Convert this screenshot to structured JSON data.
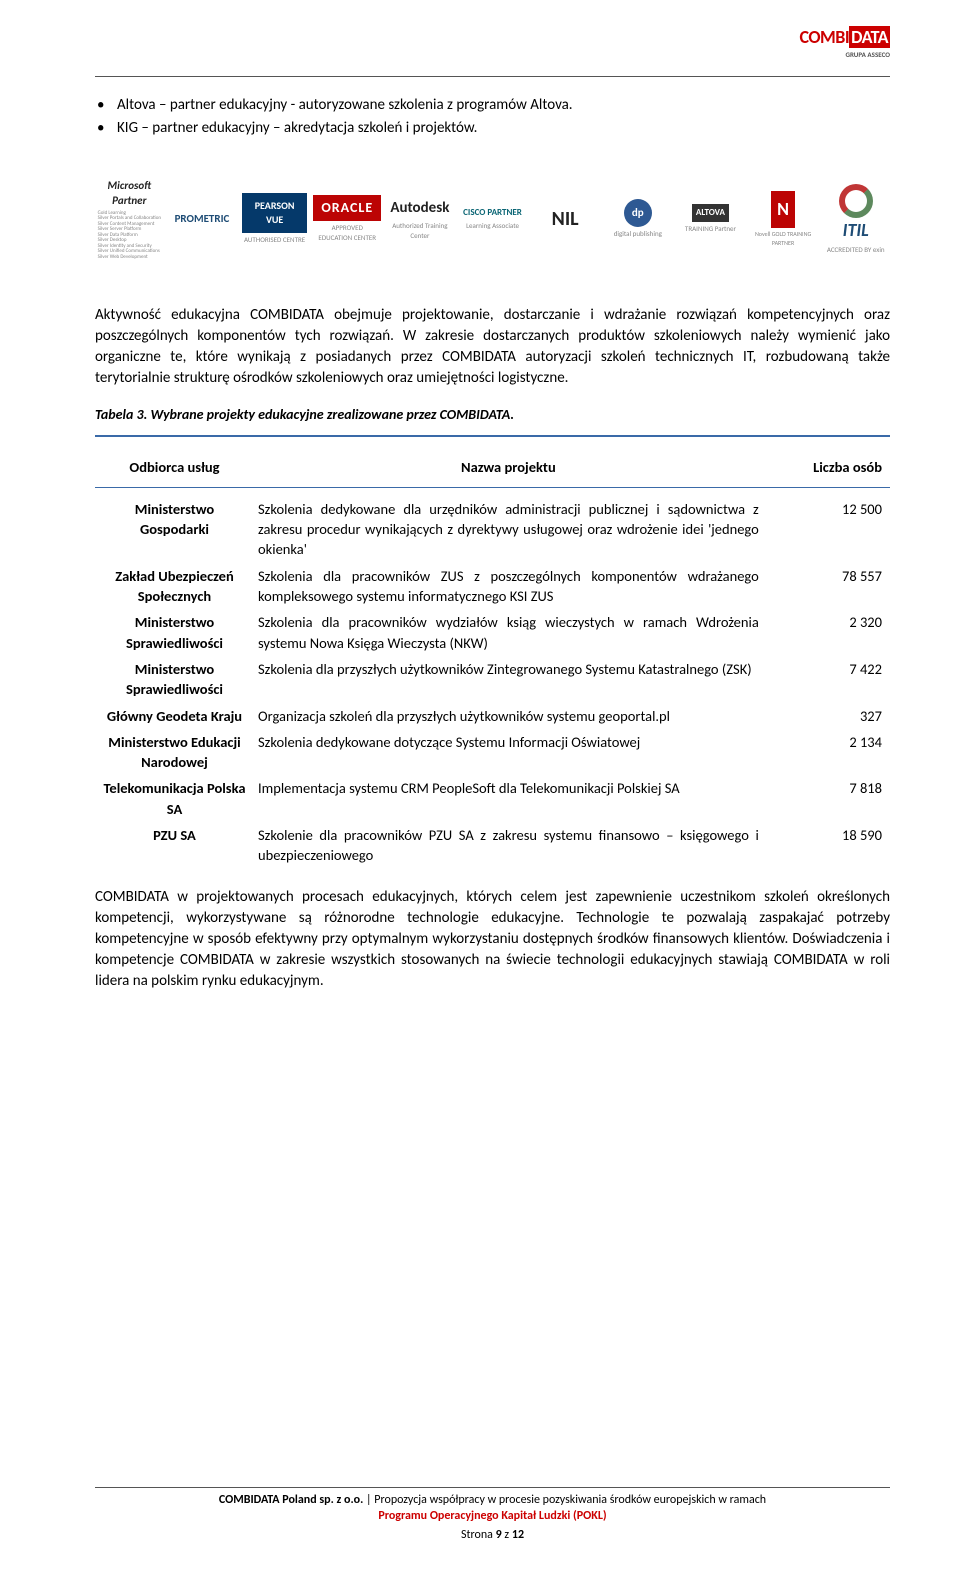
{
  "header": {
    "logo_part1": "COMBI",
    "logo_part2": "DATA",
    "logo_sub": "GRUPA ASSECO"
  },
  "bullets": [
    "Altova – partner edukacyjny - autoryzowane szkolenia z programów Altova.",
    "KIG – partner edukacyjny – akredytacja szkoleń i projektów."
  ],
  "logos": [
    {
      "name": "Microsoft Partner",
      "sub": "Gold Learning\nSilver Portals and Collaboration\nSilver Content Management\nSilver Server Platform\nSilver Data Platform\nSilver Desktop\nSilver Identity and Security\nSilver Unified Communications\nSilver Web Development"
    },
    {
      "name": "PROMETRIC",
      "sub": ""
    },
    {
      "name": "PEARSON VUE",
      "sub": "AUTHORISED CENTRE"
    },
    {
      "name": "ORACLE",
      "sub": "APPROVED EDUCATION CENTER"
    },
    {
      "name": "Autodesk",
      "sub": "Authorized Training Center"
    },
    {
      "name": "CISCO PARTNER",
      "sub": "Learning Associate"
    },
    {
      "name": "NIL",
      "sub": ""
    },
    {
      "name": "dp",
      "sub": "digital publishing"
    },
    {
      "name": "ALTOVA",
      "sub": "TRAINING Partner"
    },
    {
      "name": "N",
      "sub": "Novell GOLD TRAINING PARTNER"
    },
    {
      "name": "ITIL",
      "sub": "ACCREDITED BY exin"
    }
  ],
  "para1": "Aktywność edukacyjna COMBIDATA obejmuje projektowanie, dostarczanie i wdrażanie rozwiązań kompetencyjnych oraz poszczególnych komponentów tych rozwiązań. W zakresie dostarczanych produktów szkoleniowych należy wymienić jako organiczne te, które wynikają z posiadanych przez COMBIDATA autoryzacji szkoleń technicznych IT, rozbudowaną także terytorialnie strukturę ośrodków szkoleniowych oraz umiejętności logistyczne.",
  "table_caption": "Tabela 3. Wybrane projekty edukacyjne zrealizowane przez COMBIDATA.",
  "table": {
    "headers": [
      "Odbiorca usług",
      "Nazwa projektu",
      "Liczba osób"
    ],
    "rows": [
      {
        "c1": "Ministerstwo Gospodarki",
        "c2": "Szkolenia dedykowane dla urzędników administracji publicznej i sądownictwa  z zakresu procedur wynikających z dyrektywy usługowej oraz wdrożenie idei 'jednego okienka'",
        "c3": "12 500"
      },
      {
        "c1": "Zakład Ubezpieczeń Społecznych",
        "c2": "Szkolenia dla pracowników ZUS z poszczególnych komponentów wdrażanego kompleksowego systemu informatycznego KSI ZUS",
        "c3": "78 557"
      },
      {
        "c1": "Ministerstwo Sprawiedliwości",
        "c2": "Szkolenia dla pracowników wydziałów ksiąg wieczystych w ramach Wdrożenia systemu Nowa Księga Wieczysta (NKW)",
        "c3": "2 320"
      },
      {
        "c1": "Ministerstwo Sprawiedliwości",
        "c2": "Szkolenia dla przyszłych użytkowników Zintegrowanego Systemu Katastralnego (ZSK)",
        "c3": "7 422"
      },
      {
        "c1": "Główny Geodeta Kraju",
        "c2": "Organizacja szkoleń dla przyszłych użytkowników systemu geoportal.pl",
        "c3": "327"
      },
      {
        "c1": "Ministerstwo Edukacji Narodowej",
        "c2": "Szkolenia dedykowane dotyczące Systemu Informacji Oświatowej",
        "c3": "2 134"
      },
      {
        "c1": "Telekomunikacja Polska SA",
        "c2": "Implementacja systemu CRM PeopleSoft dla Telekomunikacji Polskiej SA",
        "c3": "7 818"
      },
      {
        "c1": "PZU SA",
        "c2": "Szkolenie dla pracowników PZU SA z zakresu systemu finansowo – księgowego i ubezpieczeniowego",
        "c3": "18 590"
      }
    ]
  },
  "para2": "COMBIDATA w projektowanych procesach edukacyjnych, których celem jest zapewnienie uczestnikom szkoleń określonych kompetencji, wykorzystywane są różnorodne technologie edukacyjne. Technologie te pozwalają zaspakajać potrzeby kompetencyjne w sposób efektywny przy optymalnym wykorzystaniu dostępnych środków finansowych klientów. Doświadczenia i kompetencje COMBIDATA w zakresie wszystkich stosowanych na świecie technologii edukacyjnych stawiają COMBIDATA w roli lidera na polskim rynku edukacyjnym.",
  "footer": {
    "line1_a": "COMBIDATA Poland sp. z o.o.",
    "line1_b": " | Propozycja współpracy w procesie pozyskiwania środków europejskich w ramach",
    "line2": "Programu Operacyjnego Kapitał Ludzki (POKL)",
    "page_a": "Strona ",
    "page_n": "9",
    "page_b": " z ",
    "page_t": "12"
  }
}
